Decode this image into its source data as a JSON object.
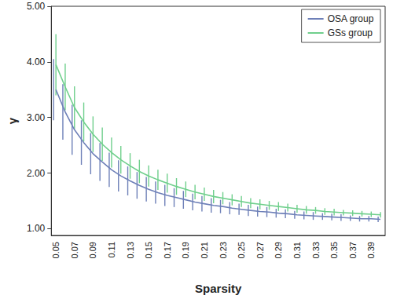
{
  "chart_data": {
    "type": "line",
    "x_label": "Sparsity",
    "y_label": "γ",
    "categories": [
      "0.05",
      null,
      "0.07",
      null,
      "0.09",
      null,
      "0.11",
      null,
      "0.13",
      null,
      "0.15",
      null,
      "0.17",
      null,
      "0.19",
      null,
      "0.21",
      null,
      "0.23",
      null,
      "0.25",
      null,
      "0.27",
      null,
      "0.29",
      null,
      "0.31",
      null,
      "0.33",
      null,
      "0.35",
      null,
      "0.37",
      null,
      "0.39",
      null
    ],
    "series": [
      {
        "name": "OSA group",
        "color": "#6e80b8",
        "values": [
          3.5,
          3.1,
          2.78,
          2.55,
          2.35,
          2.2,
          2.06,
          1.95,
          1.86,
          1.78,
          1.71,
          1.65,
          1.6,
          1.56,
          1.52,
          1.48,
          1.45,
          1.42,
          1.4,
          1.37,
          1.35,
          1.33,
          1.31,
          1.3,
          1.28,
          1.27,
          1.25,
          1.24,
          1.23,
          1.22,
          1.21,
          1.2,
          1.19,
          1.18,
          1.18,
          1.17
        ],
        "errors": [
          0.55,
          0.5,
          0.45,
          0.4,
          0.37,
          0.34,
          0.31,
          0.28,
          0.26,
          0.24,
          0.22,
          0.2,
          0.19,
          0.17,
          0.16,
          0.15,
          0.14,
          0.13,
          0.12,
          0.11,
          0.1,
          0.1,
          0.09,
          0.09,
          0.08,
          0.08,
          0.07,
          0.07,
          0.07,
          0.06,
          0.06,
          0.06,
          0.05,
          0.05,
          0.05,
          0.05
        ]
      },
      {
        "name": "GSs group",
        "color": "#6fcf8c",
        "values": [
          3.95,
          3.55,
          3.18,
          2.92,
          2.7,
          2.52,
          2.37,
          2.24,
          2.13,
          2.03,
          1.95,
          1.88,
          1.82,
          1.76,
          1.71,
          1.66,
          1.62,
          1.58,
          1.55,
          1.52,
          1.49,
          1.46,
          1.44,
          1.42,
          1.4,
          1.38,
          1.36,
          1.34,
          1.33,
          1.31,
          1.3,
          1.29,
          1.28,
          1.27,
          1.26,
          1.25
        ],
        "errors": [
          0.55,
          0.42,
          0.38,
          0.35,
          0.32,
          0.3,
          0.27,
          0.25,
          0.23,
          0.21,
          0.19,
          0.18,
          0.17,
          0.15,
          0.14,
          0.13,
          0.12,
          0.12,
          0.11,
          0.1,
          0.1,
          0.09,
          0.09,
          0.08,
          0.08,
          0.07,
          0.07,
          0.07,
          0.06,
          0.06,
          0.06,
          0.05,
          0.05,
          0.05,
          0.05,
          0.05
        ]
      }
    ],
    "ylim": [
      0.88,
      5.0
    ],
    "yticks": [
      {
        "value": 1,
        "label": "1.00"
      },
      {
        "value": 2,
        "label": "2.00"
      },
      {
        "value": 3,
        "label": "3.00"
      },
      {
        "value": 4,
        "label": "4.00"
      },
      {
        "value": 5,
        "label": "5.00"
      }
    ],
    "grid": false,
    "legend": "upper right"
  }
}
